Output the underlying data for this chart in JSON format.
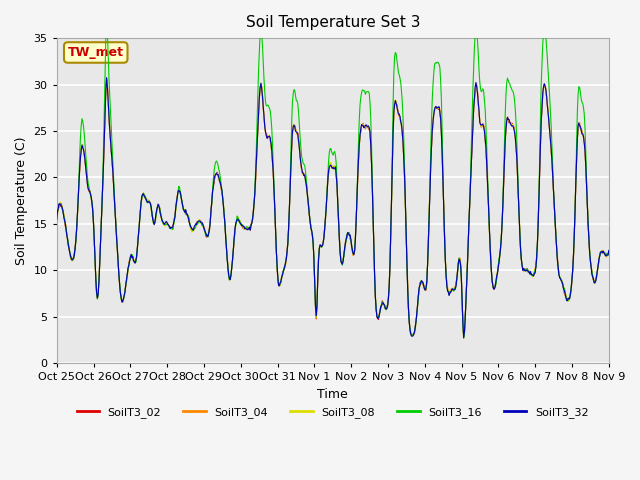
{
  "title": "Soil Temperature Set 3",
  "xlabel": "Time",
  "ylabel": "Soil Temperature (C)",
  "ylim": [
    0,
    35
  ],
  "series_names": [
    "SoilT3_02",
    "SoilT3_04",
    "SoilT3_08",
    "SoilT3_16",
    "SoilT3_32"
  ],
  "series_colors": [
    "#dd0000",
    "#ff8800",
    "#dddd00",
    "#00cc00",
    "#0000bb"
  ],
  "annotation_text": "TW_met",
  "annotation_color": "#cc0000",
  "annotation_bg": "#ffffcc",
  "annotation_border": "#aa8800",
  "xtick_labels": [
    "Oct 25",
    "Oct 26",
    "Oct 27",
    "Oct 28",
    "Oct 29",
    "Oct 30",
    "Oct 31",
    "Nov 1",
    "Nov 2",
    "Nov 3",
    "Nov 4",
    "Nov 5",
    "Nov 6",
    "Nov 7",
    "Nov 8",
    "Nov 9"
  ],
  "bg_color": "#e8e8e8",
  "grid_color": "#ffffff",
  "yticks": [
    0,
    5,
    10,
    15,
    20,
    25,
    30,
    35
  ],
  "figsize": [
    6.4,
    4.8
  ],
  "dpi": 100
}
